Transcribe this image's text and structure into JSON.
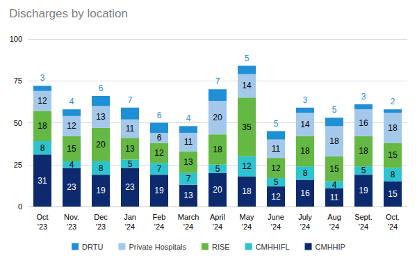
{
  "chart_data": {
    "type": "bar",
    "title": "Discharges by location",
    "categories": [
      "Oct\n'23",
      "Nov.\n'23",
      "Dec\n'23",
      "Jan\n'24",
      "Feb\n'24",
      "March\n'24",
      "April\n'24",
      "May\n'24",
      "June\n'24",
      "July\n'24",
      "Aug\n'24",
      "Sept.\n'24",
      "Oct.\n'24"
    ],
    "series": [
      {
        "name": "CMHHIP",
        "color": "#0d2a6e",
        "values": [
          31,
          23,
          19,
          23,
          19,
          13,
          20,
          18,
          12,
          16,
          11,
          19,
          15
        ]
      },
      {
        "name": "CMHHIFL",
        "color": "#2ec4cf",
        "values": [
          8,
          4,
          8,
          5,
          7,
          7,
          5,
          12,
          5,
          8,
          4,
          5,
          8
        ]
      },
      {
        "name": "RISE",
        "color": "#64b843",
        "values": [
          18,
          15,
          20,
          13,
          12,
          13,
          18,
          35,
          12,
          18,
          15,
          18,
          15
        ]
      },
      {
        "name": "Private Hospitals",
        "color": "#a3c8ea",
        "values": [
          12,
          12,
          13,
          11,
          6,
          11,
          20,
          14,
          11,
          14,
          18,
          16,
          18
        ]
      },
      {
        "name": "DRTU",
        "color": "#1f8fd6",
        "values": [
          3,
          4,
          6,
          7,
          6,
          4,
          7,
          5,
          5,
          3,
          5,
          3,
          2
        ]
      }
    ],
    "ylim": [
      0,
      100
    ],
    "yticks": [
      0,
      25,
      50,
      75,
      100
    ],
    "stacked": true,
    "data_labels": true,
    "grid": true,
    "legend": "bottom"
  }
}
